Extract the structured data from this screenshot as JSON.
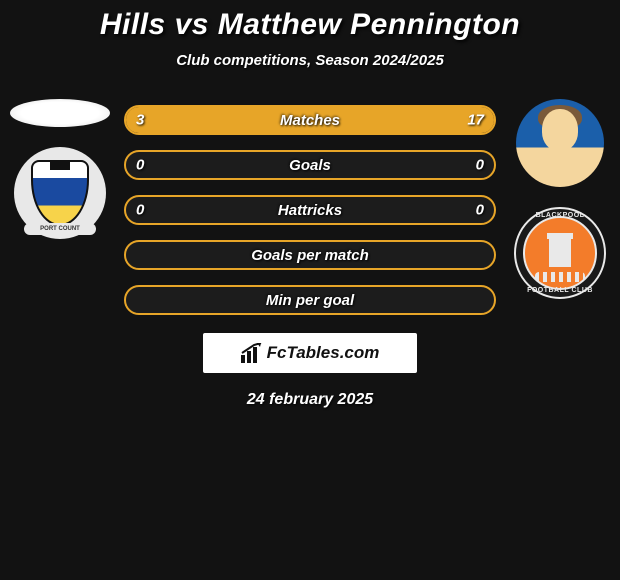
{
  "title_color": "#ffffff",
  "title_parts": {
    "left": "Hills",
    "vs": "vs",
    "right": "Matthew Pennington"
  },
  "subtitle": "Club competitions, Season 2024/2025",
  "bar_border_color": "#e7a528",
  "bar_fill_color": "#e7a528",
  "bar_bg_color": "#1c1c1c",
  "background_color": "#121212",
  "text_color": "#ffffff",
  "bars": [
    {
      "label": "Matches",
      "left": "3",
      "right": "17",
      "left_pct": 15,
      "right_pct": 85
    },
    {
      "label": "Goals",
      "left": "0",
      "right": "0",
      "left_pct": 0,
      "right_pct": 0
    },
    {
      "label": "Hattricks",
      "left": "0",
      "right": "0",
      "left_pct": 0,
      "right_pct": 0
    },
    {
      "label": "Goals per match",
      "left": "",
      "right": "",
      "left_pct": 0,
      "right_pct": 0
    },
    {
      "label": "Min per goal",
      "left": "",
      "right": "",
      "left_pct": 0,
      "right_pct": 0
    }
  ],
  "left_club_scroll": "PORT COUNT",
  "right_club_top": "BLACKPOOL",
  "right_club_bottom": "FOOTBALL CLUB",
  "brand": "FcTables.com",
  "date": "24 february 2025"
}
